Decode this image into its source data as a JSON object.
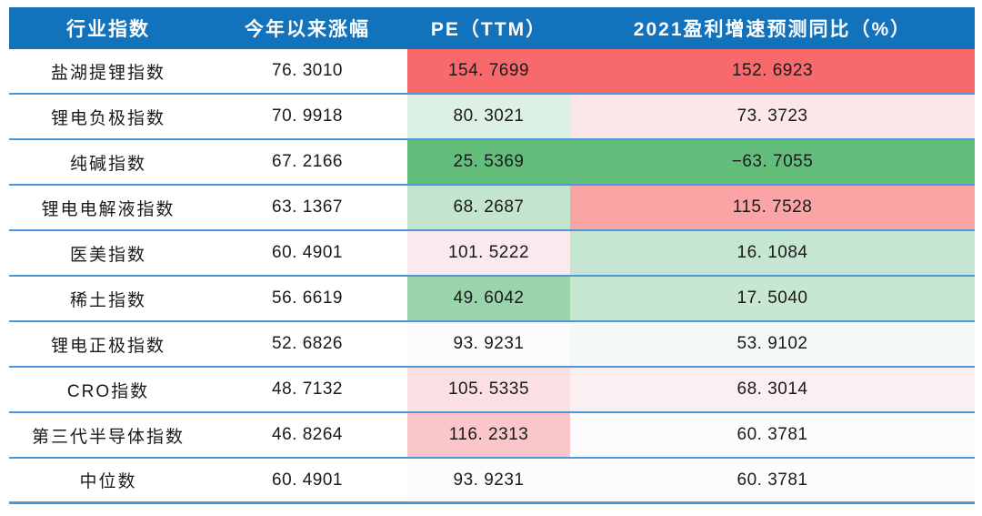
{
  "colors": {
    "header_bg": "#1272BC",
    "header_text": "#FFFFFF",
    "row_border": "#4E97D9",
    "body_text": "#1A1A1A",
    "scale_max_red": "#F8696B",
    "scale_mid_white": "#FCFCFF",
    "scale_min_green": "#63BE7B"
  },
  "table": {
    "columns": [
      {
        "label": "行业指数"
      },
      {
        "label": "今年以来涨幅"
      },
      {
        "label": "PE（TTM）"
      },
      {
        "label": "2021盈利增速预测同比（%）"
      }
    ],
    "rows": [
      {
        "name": "盐湖提锂指数",
        "ytd": "76. 3010",
        "pe": "154. 7699",
        "pe_bg": "#F8696B",
        "growth": "152. 6923",
        "growth_bg": "#F8696B"
      },
      {
        "name": "锂电负极指数",
        "ytd": "70. 9918",
        "pe": "80. 3021",
        "pe_bg": "#DDF0E5",
        "growth": "73. 3723",
        "growth_bg": "#FBE7EA"
      },
      {
        "name": "纯碱指数",
        "ytd": "67. 2166",
        "pe": "25. 5369",
        "pe_bg": "#63BE7B",
        "growth": "−63. 7055",
        "growth_bg": "#63BE7B"
      },
      {
        "name": "锂电电解液指数",
        "ytd": "63. 1367",
        "pe": "68. 2687",
        "pe_bg": "#C3E5CE",
        "growth": "115. 7528",
        "growth_bg": "#FAA4A6"
      },
      {
        "name": "医美指数",
        "ytd": "60. 4901",
        "pe": "101. 5222",
        "pe_bg": "#FBEAED",
        "growth": "16. 1084",
        "growth_bg": "#C5E6D0"
      },
      {
        "name": "稀土指数",
        "ytd": "56. 6619",
        "pe": "49. 6042",
        "pe_bg": "#99D4AA",
        "growth": "17. 5040",
        "growth_bg": "#C7E7D1"
      },
      {
        "name": "锂电正极指数",
        "ytd": "52. 6826",
        "pe": "93. 9231",
        "pe_bg": "#FCFCFF",
        "growth": "53. 9102",
        "growth_bg": "#F4F9F8"
      },
      {
        "name": "CRO指数",
        "ytd": "48. 7132",
        "pe": "105. 5335",
        "pe_bg": "#FBE0E3",
        "growth": "68. 3014",
        "growth_bg": "#FBEFF2"
      },
      {
        "name": "第三代半导体指数",
        "ytd": "46. 8264",
        "pe": "116. 2313",
        "pe_bg": "#FAC6C9",
        "growth": "60. 3781",
        "growth_bg": "#FCFCFF"
      },
      {
        "name": "中位数",
        "ytd": "60. 4901",
        "pe": "93. 9231",
        "pe_bg": "#FCFCFF",
        "growth": "60. 3781",
        "growth_bg": "#FCFCFF"
      }
    ]
  },
  "chart_data": {
    "type": "table",
    "title": "",
    "columns": [
      "行业指数",
      "今年以来涨幅",
      "PE（TTM）",
      "2021盈利增速预测同比（%）"
    ],
    "rows": [
      [
        "盐湖提锂指数",
        76.301,
        154.7699,
        152.6923
      ],
      [
        "锂电负极指数",
        70.9918,
        80.3021,
        73.3723
      ],
      [
        "纯碱指数",
        67.2166,
        25.5369,
        -63.7055
      ],
      [
        "锂电电解液指数",
        63.1367,
        68.2687,
        115.7528
      ],
      [
        "医美指数",
        60.4901,
        101.5222,
        16.1084
      ],
      [
        "稀土指数",
        56.6619,
        49.6042,
        17.504
      ],
      [
        "锂电正极指数",
        52.6826,
        93.9231,
        53.9102
      ],
      [
        "CRO指数",
        48.7132,
        105.5335,
        68.3014
      ],
      [
        "第三代半导体指数",
        46.8264,
        116.2313,
        60.3781
      ],
      [
        "中位数",
        60.4901,
        93.9231,
        60.3781
      ]
    ],
    "layout_hints": {
      "heatmap_columns": [
        "PE（TTM）",
        "2021盈利增速预测同比（%）"
      ],
      "color_scale": "red(max) - white(mid) - green(min)",
      "header_style": "blue background, white bold text",
      "row_separator": "blue horizontal lines"
    }
  }
}
